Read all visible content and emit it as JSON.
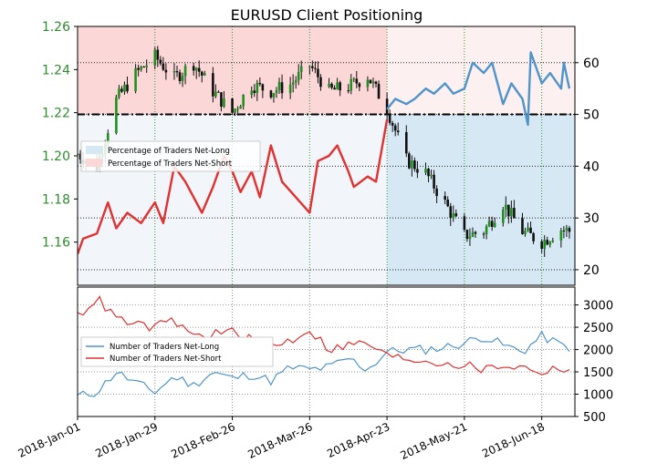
{
  "chart_data": [
    {
      "type": "line",
      "panel": "price-and-percentage",
      "title": "EURUSD Client Positioning",
      "ylabel_left": "",
      "ylabel_right": "",
      "ylim_left": [
        1.14,
        1.26
      ],
      "ylim_right": [
        17,
        67
      ],
      "yticks_left": [
        "1.16",
        "1.18",
        "1.20",
        "1.22",
        "1.24",
        "1.26"
      ],
      "yticks_right": [
        "20",
        "30",
        "40",
        "50",
        "60"
      ],
      "reference_level": 50,
      "legend_position": "upper-left",
      "legend": [
        "Percentage of Traders Net-Long",
        "Percentage of Traders Net-Short"
      ],
      "price_axis": "left",
      "price_close": [
        {
          "x": "2018-01-01",
          "y": 1.201
        },
        {
          "x": "2018-01-08",
          "y": 1.195
        },
        {
          "x": "2018-01-15",
          "y": 1.226
        },
        {
          "x": "2018-01-22",
          "y": 1.238
        },
        {
          "x": "2018-01-29",
          "y": 1.246
        },
        {
          "x": "2018-02-05",
          "y": 1.236
        },
        {
          "x": "2018-02-12",
          "y": 1.243
        },
        {
          "x": "2018-02-19",
          "y": 1.23
        },
        {
          "x": "2018-02-26",
          "y": 1.22
        },
        {
          "x": "2018-03-05",
          "y": 1.233
        },
        {
          "x": "2018-03-12",
          "y": 1.23
        },
        {
          "x": "2018-03-19",
          "y": 1.233
        },
        {
          "x": "2018-03-26",
          "y": 1.242
        },
        {
          "x": "2018-04-02",
          "y": 1.23
        },
        {
          "x": "2018-04-09",
          "y": 1.232
        },
        {
          "x": "2018-04-16",
          "y": 1.237
        },
        {
          "x": "2018-04-23",
          "y": 1.222
        },
        {
          "x": "2018-04-30",
          "y": 1.198
        },
        {
          "x": "2018-05-07",
          "y": 1.192
        },
        {
          "x": "2018-05-14",
          "y": 1.178
        },
        {
          "x": "2018-05-21",
          "y": 1.163
        },
        {
          "x": "2018-05-28",
          "y": 1.165
        },
        {
          "x": "2018-06-04",
          "y": 1.178
        },
        {
          "x": "2018-06-11",
          "y": 1.165
        },
        {
          "x": "2018-06-18",
          "y": 1.16
        },
        {
          "x": "2018-06-25",
          "y": 1.166
        },
        {
          "x": "2018-06-28",
          "y": 1.165
        }
      ],
      "series": [
        {
          "name": "Percentage of Traders Net-Long",
          "color": "#4f94c9",
          "values": [
            {
              "x": "2018-04-23",
              "y": 51
            },
            {
              "x": "2018-04-26",
              "y": 53
            },
            {
              "x": "2018-04-30",
              "y": 52
            },
            {
              "x": "2018-05-03",
              "y": 53
            },
            {
              "x": "2018-05-07",
              "y": 55
            },
            {
              "x": "2018-05-10",
              "y": 54
            },
            {
              "x": "2018-05-14",
              "y": 56
            },
            {
              "x": "2018-05-17",
              "y": 54
            },
            {
              "x": "2018-05-21",
              "y": 55
            },
            {
              "x": "2018-05-24",
              "y": 60
            },
            {
              "x": "2018-05-28",
              "y": 58
            },
            {
              "x": "2018-05-31",
              "y": 60
            },
            {
              "x": "2018-06-04",
              "y": 52
            },
            {
              "x": "2018-06-07",
              "y": 56
            },
            {
              "x": "2018-06-11",
              "y": 53
            },
            {
              "x": "2018-06-13",
              "y": 48
            },
            {
              "x": "2018-06-14",
              "y": 62
            },
            {
              "x": "2018-06-18",
              "y": 56
            },
            {
              "x": "2018-06-21",
              "y": 58
            },
            {
              "x": "2018-06-25",
              "y": 55
            },
            {
              "x": "2018-06-26",
              "y": 60
            },
            {
              "x": "2018-06-28",
              "y": 55
            }
          ]
        },
        {
          "name": "Percentage of Traders Net-Short",
          "color": "#e03030",
          "values": [
            {
              "x": "2018-01-01",
              "y": 23
            },
            {
              "x": "2018-01-03",
              "y": 26
            },
            {
              "x": "2018-01-08",
              "y": 27
            },
            {
              "x": "2018-01-12",
              "y": 33
            },
            {
              "x": "2018-01-15",
              "y": 28
            },
            {
              "x": "2018-01-19",
              "y": 31
            },
            {
              "x": "2018-01-24",
              "y": 29
            },
            {
              "x": "2018-01-29",
              "y": 33
            },
            {
              "x": "2018-02-01",
              "y": 29
            },
            {
              "x": "2018-02-05",
              "y": 40
            },
            {
              "x": "2018-02-09",
              "y": 37
            },
            {
              "x": "2018-02-15",
              "y": 31
            },
            {
              "x": "2018-02-19",
              "y": 36
            },
            {
              "x": "2018-02-23",
              "y": 42
            },
            {
              "x": "2018-02-26",
              "y": 39
            },
            {
              "x": "2018-03-01",
              "y": 35
            },
            {
              "x": "2018-03-05",
              "y": 39
            },
            {
              "x": "2018-03-08",
              "y": 34
            },
            {
              "x": "2018-03-12",
              "y": 44
            },
            {
              "x": "2018-03-16",
              "y": 37
            },
            {
              "x": "2018-03-21",
              "y": 34
            },
            {
              "x": "2018-03-26",
              "y": 31
            },
            {
              "x": "2018-03-29",
              "y": 41
            },
            {
              "x": "2018-04-02",
              "y": 42
            },
            {
              "x": "2018-04-05",
              "y": 44
            },
            {
              "x": "2018-04-09",
              "y": 39
            },
            {
              "x": "2018-04-11",
              "y": 36
            },
            {
              "x": "2018-04-16",
              "y": 38
            },
            {
              "x": "2018-04-19",
              "y": 37
            },
            {
              "x": "2018-04-23",
              "y": 49
            }
          ]
        }
      ]
    },
    {
      "type": "line",
      "panel": "trader-counts",
      "ylim": [
        500,
        3400
      ],
      "yticks": [
        "500",
        "1000",
        "1500",
        "2000",
        "2500",
        "3000"
      ],
      "legend_position": "left",
      "xticks": [
        "2018-Jan-01",
        "2018-Jan-29",
        "2018-Feb-26",
        "2018-Mar-26",
        "2018-Apr-23",
        "2018-May-21",
        "2018-Jun-18"
      ],
      "series": [
        {
          "name": "Number of Traders Net-Long",
          "color": "#4f94c9",
          "values": [
            {
              "x": "2018-01-01",
              "y": 950
            },
            {
              "x": "2018-01-08",
              "y": 1050
            },
            {
              "x": "2018-01-15",
              "y": 1500
            },
            {
              "x": "2018-01-22",
              "y": 1250
            },
            {
              "x": "2018-01-29",
              "y": 1050
            },
            {
              "x": "2018-02-05",
              "y": 1400
            },
            {
              "x": "2018-02-12",
              "y": 1200
            },
            {
              "x": "2018-02-19",
              "y": 1500
            },
            {
              "x": "2018-02-26",
              "y": 1350
            },
            {
              "x": "2018-03-05",
              "y": 1450
            },
            {
              "x": "2018-03-12",
              "y": 1300
            },
            {
              "x": "2018-03-19",
              "y": 1600
            },
            {
              "x": "2018-03-26",
              "y": 1550
            },
            {
              "x": "2018-04-02",
              "y": 1600
            },
            {
              "x": "2018-04-09",
              "y": 1800
            },
            {
              "x": "2018-04-16",
              "y": 1550
            },
            {
              "x": "2018-04-23",
              "y": 1950
            },
            {
              "x": "2018-04-30",
              "y": 2000
            },
            {
              "x": "2018-05-07",
              "y": 2000
            },
            {
              "x": "2018-05-14",
              "y": 2050
            },
            {
              "x": "2018-05-21",
              "y": 2150
            },
            {
              "x": "2018-05-28",
              "y": 2300
            },
            {
              "x": "2018-06-04",
              "y": 2100
            },
            {
              "x": "2018-06-11",
              "y": 1950
            },
            {
              "x": "2018-06-18",
              "y": 2300
            },
            {
              "x": "2018-06-25",
              "y": 2100
            },
            {
              "x": "2018-06-28",
              "y": 2050
            }
          ]
        },
        {
          "name": "Number of Traders Net-Short",
          "color": "#e03030",
          "values": [
            {
              "x": "2018-01-01",
              "y": 2750
            },
            {
              "x": "2018-01-08",
              "y": 3150
            },
            {
              "x": "2018-01-15",
              "y": 2700
            },
            {
              "x": "2018-01-22",
              "y": 2550
            },
            {
              "x": "2018-01-29",
              "y": 2500
            },
            {
              "x": "2018-02-05",
              "y": 2650
            },
            {
              "x": "2018-02-12",
              "y": 2300
            },
            {
              "x": "2018-02-19",
              "y": 2350
            },
            {
              "x": "2018-02-26",
              "y": 2400
            },
            {
              "x": "2018-03-05",
              "y": 2200
            },
            {
              "x": "2018-03-12",
              "y": 2100
            },
            {
              "x": "2018-03-19",
              "y": 2200
            },
            {
              "x": "2018-03-26",
              "y": 2450
            },
            {
              "x": "2018-04-02",
              "y": 2000
            },
            {
              "x": "2018-04-09",
              "y": 2100
            },
            {
              "x": "2018-04-16",
              "y": 2150
            },
            {
              "x": "2018-04-23",
              "y": 1850
            },
            {
              "x": "2018-04-30",
              "y": 1800
            },
            {
              "x": "2018-05-07",
              "y": 1750
            },
            {
              "x": "2018-05-14",
              "y": 1700
            },
            {
              "x": "2018-05-21",
              "y": 1650
            },
            {
              "x": "2018-05-28",
              "y": 1550
            },
            {
              "x": "2018-06-04",
              "y": 1650
            },
            {
              "x": "2018-06-11",
              "y": 1600
            },
            {
              "x": "2018-06-18",
              "y": 1500
            },
            {
              "x": "2018-06-25",
              "y": 1600
            },
            {
              "x": "2018-06-28",
              "y": 1550
            }
          ]
        }
      ]
    }
  ],
  "colors": {
    "price_axis_text": "#2e8b2e",
    "grid": "#2e9a2e",
    "long_fill": "#d7e8f5",
    "short_fill": "#fbd7d7",
    "candle": "#111111",
    "candle_up": "#1f8f1f"
  }
}
